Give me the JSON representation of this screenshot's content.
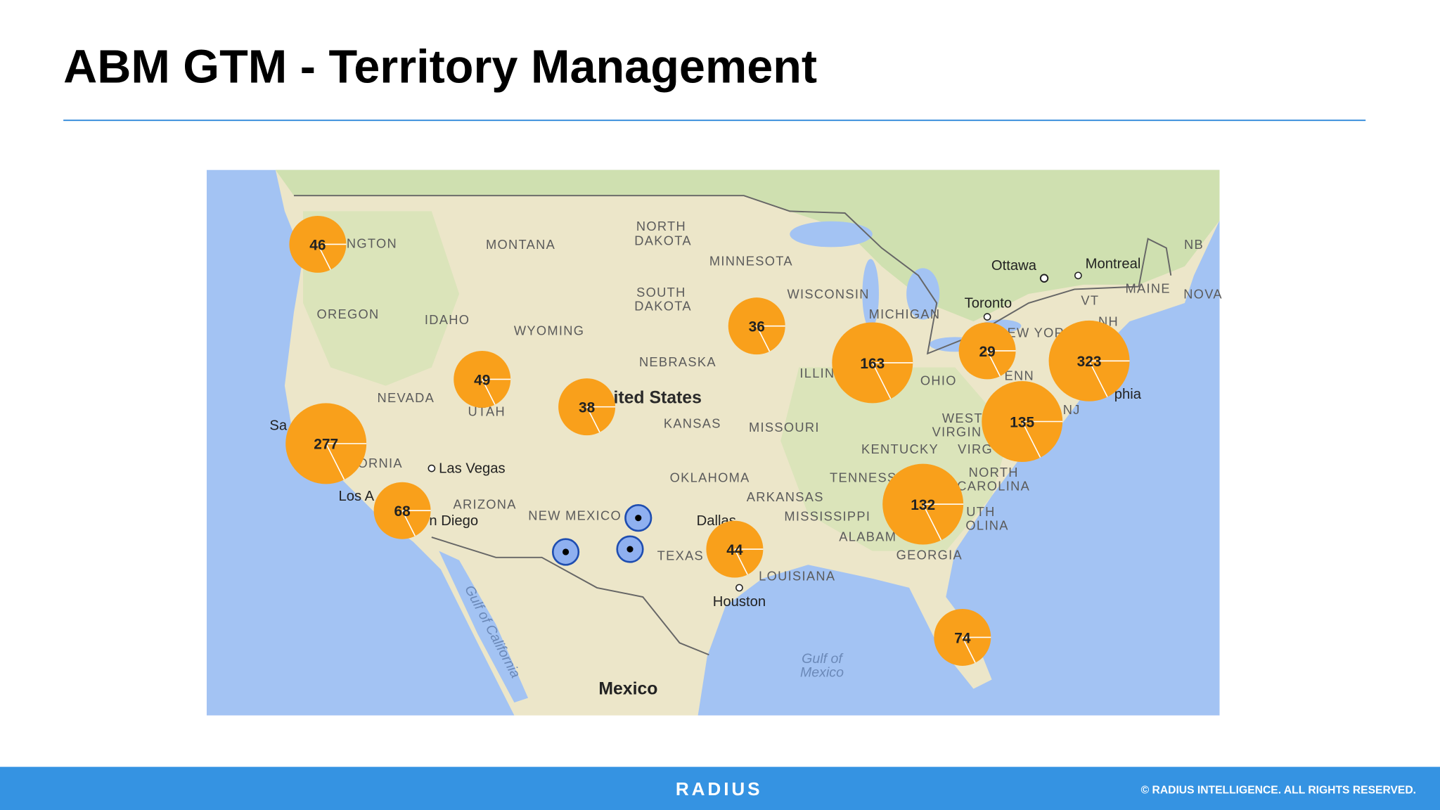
{
  "header": {
    "title": "ABM GTM - Territory Management"
  },
  "map": {
    "labels": [
      "NGTON",
      "MONTANA",
      "NORTH",
      "DAKOTA",
      "MINNESOTA",
      "Ottawa",
      "Montreal",
      "NB",
      "OREGON",
      "IDAHO",
      "WYOMING",
      "SOUTH",
      "DAKOTA",
      "WISCONSIN",
      "MICHIGAN",
      "Toronto",
      "VT",
      "MAINE",
      "NOVA",
      "NH",
      "NEBRASKA",
      "ited States",
      "NEVADA",
      "UTAH",
      "KANSAS",
      "MISSOURI",
      "ILLIN",
      "OHIO",
      "EW YOR",
      "ENN",
      "phia",
      "NJ",
      "WEST",
      "VIRGIN",
      "VIRG",
      "KENTUCKY",
      "Sa",
      "ORNIA",
      "Las Vegas",
      "TENNESS",
      "OKLAHOMA",
      "NORTH",
      "CAROLINA",
      "ARIZONA",
      "NEW MEXICO",
      "ARKANSAS",
      "Los A",
      "n Diego",
      "Dallas",
      "MISSISSIPPI",
      "UTH",
      "OLINA",
      "ALABAM",
      "TEXAS",
      "GEORGIA",
      "LOUISIANA",
      "Houston",
      "Gulf of",
      "Mexico",
      "Mexico",
      "Gulf of California"
    ],
    "clusters": [
      46,
      277,
      68,
      49,
      38,
      36,
      163,
      29,
      323,
      135,
      132,
      44,
      74
    ]
  },
  "footer": {
    "logo": "RADIUS",
    "copyright": "© RADIUS INTELLIGENCE. ALL RIGHTS RESERVED."
  }
}
